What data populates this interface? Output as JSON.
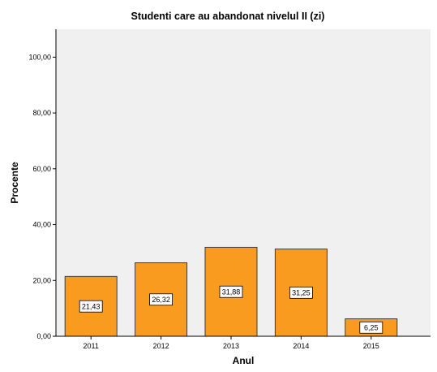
{
  "chart_data": {
    "type": "bar",
    "title": "Studenti care au abandonat nivelul II (zi)",
    "xlabel": "Anul",
    "ylabel": "Procente",
    "categories": [
      "2011",
      "2012",
      "2013",
      "2014",
      "2015"
    ],
    "values": [
      21.43,
      26.32,
      31.88,
      31.25,
      6.25
    ],
    "data_labels": [
      "21,43",
      "26,32",
      "31,88",
      "31,25",
      "6,25"
    ],
    "yticks": [
      0,
      20,
      40,
      60,
      80,
      100
    ],
    "ytick_labels": [
      "0,00",
      "20,00",
      "40,00",
      "60,00",
      "80,00",
      "100,00"
    ],
    "ylim": [
      0,
      110
    ],
    "grid": false,
    "legend": "none",
    "colors": {
      "bar_fill": "#F89B1F",
      "bar_stroke": "#3C3C3C",
      "plot_background": "#F0F0F0",
      "axis": "#000000"
    }
  }
}
